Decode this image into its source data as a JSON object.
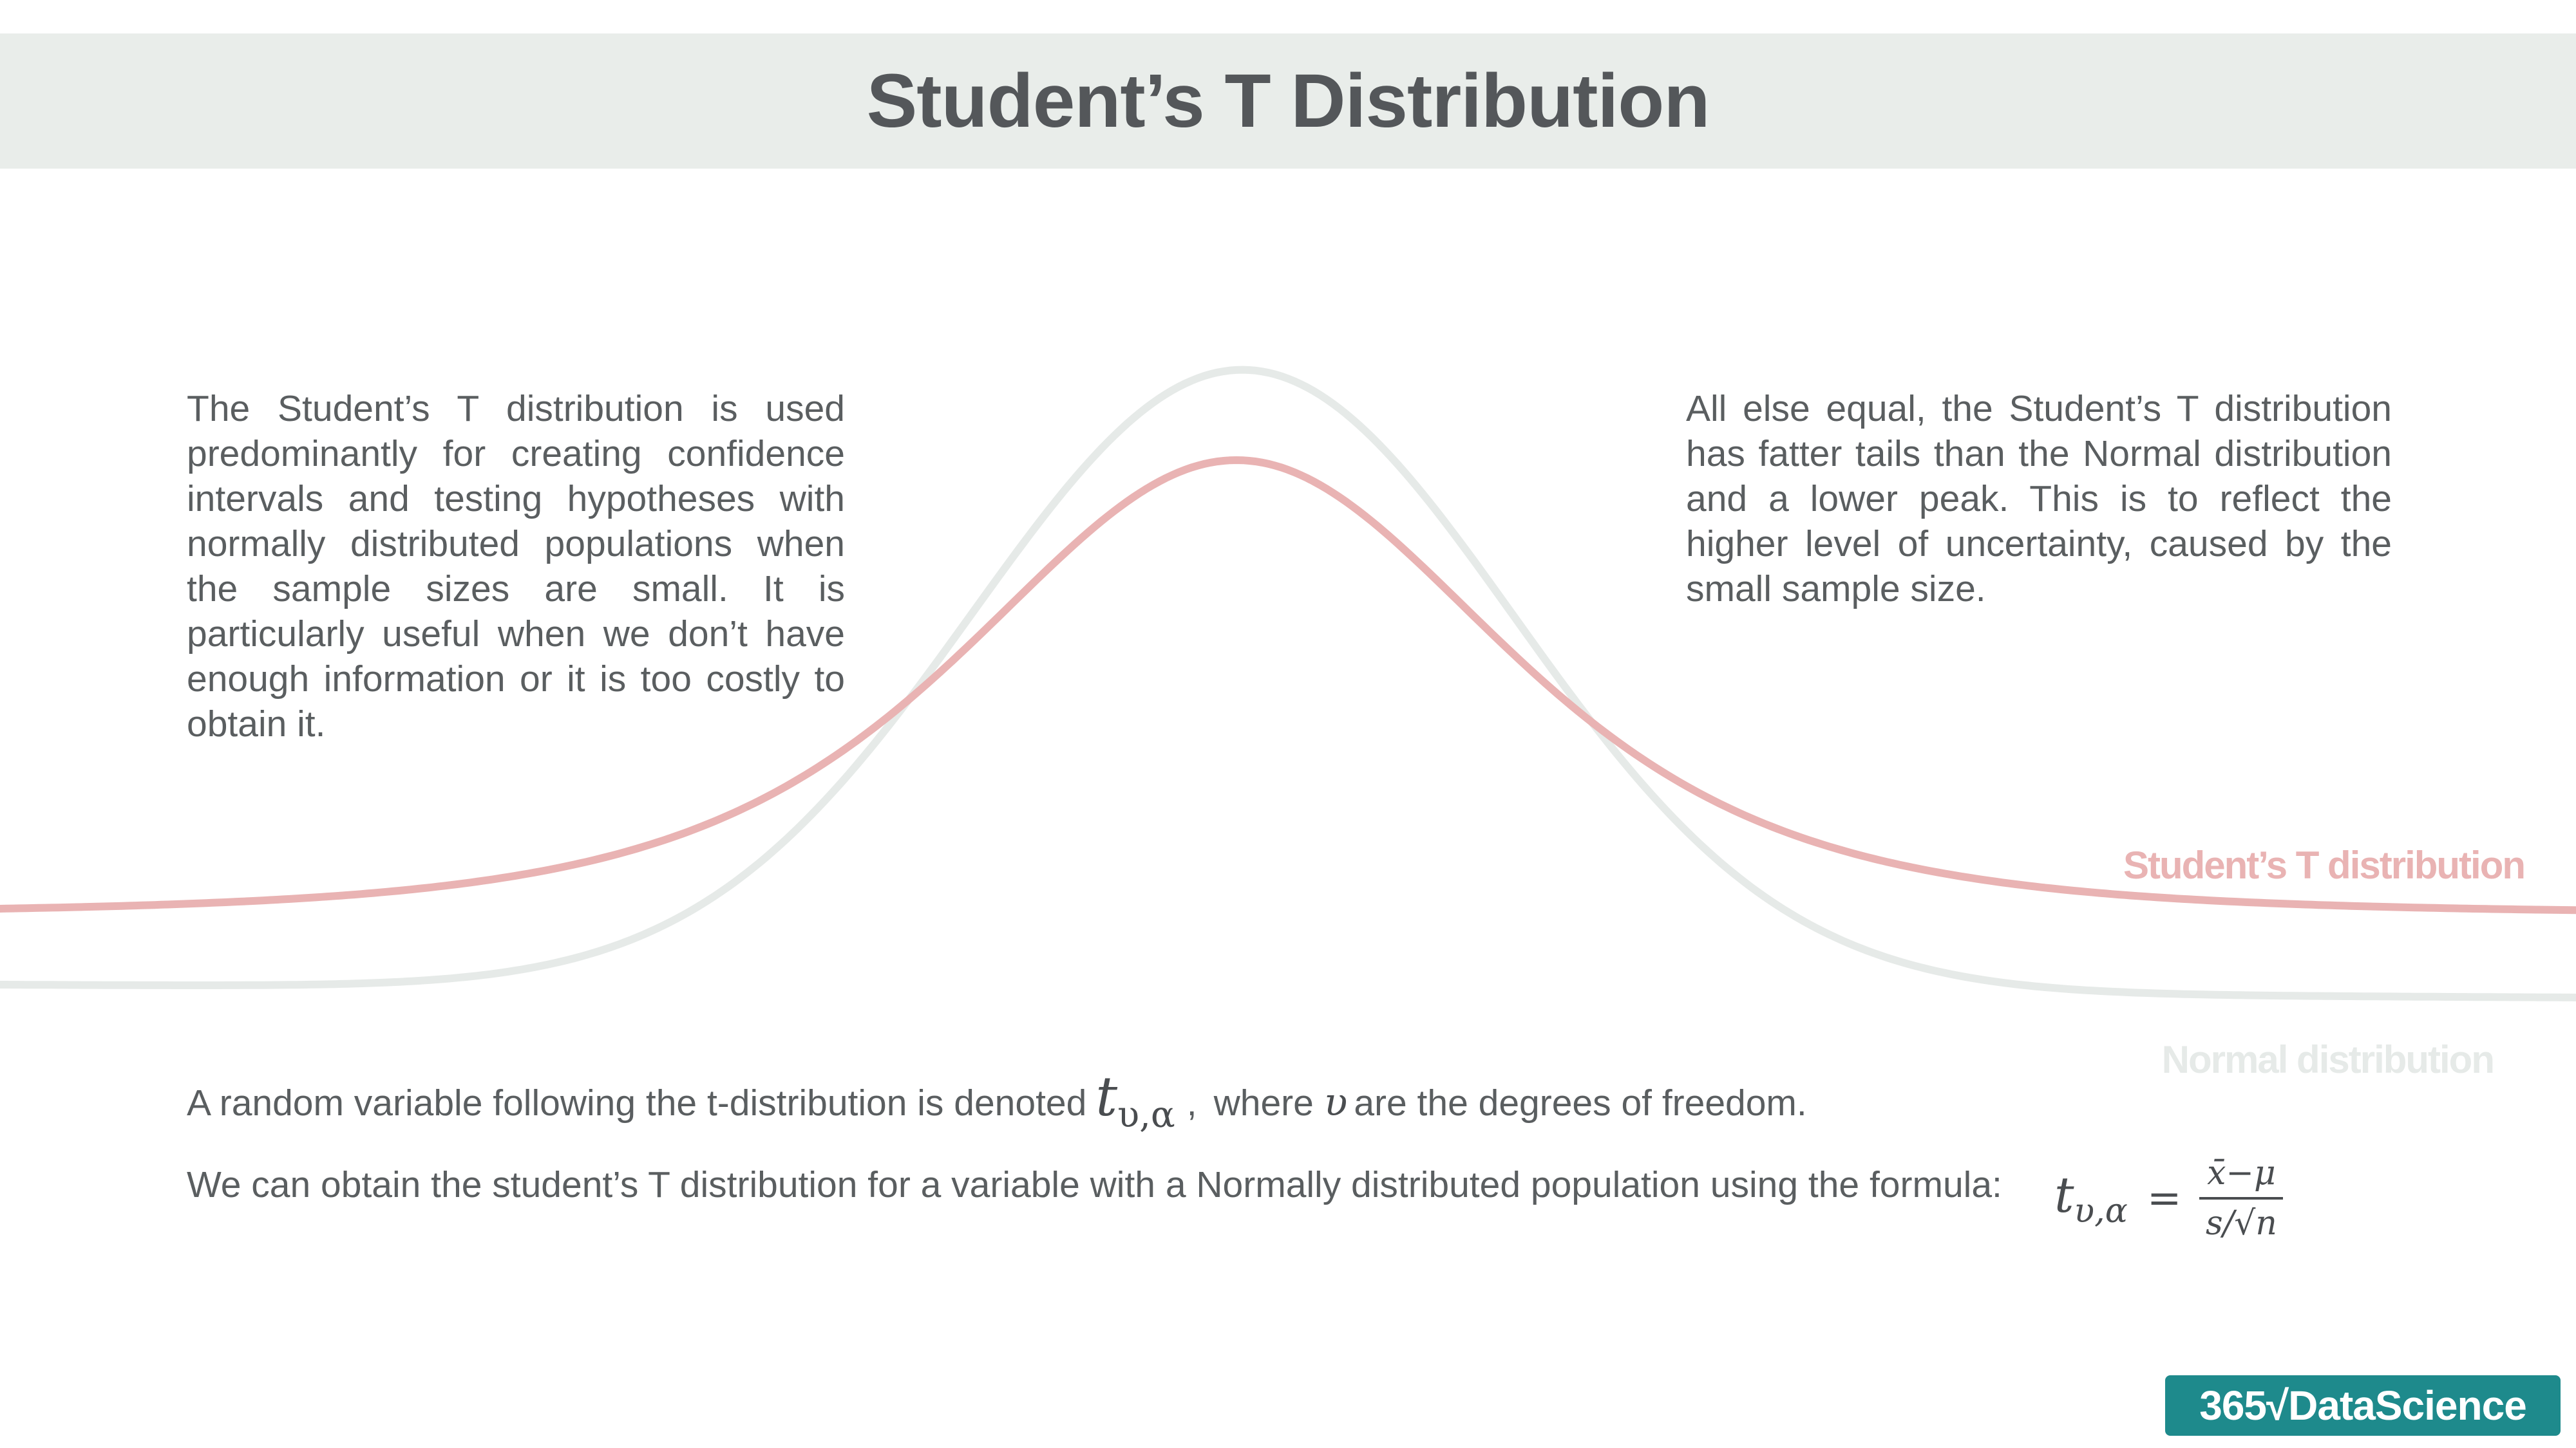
{
  "title": "Student’s T Distribution",
  "left_paragraph": "The Student’s T distribution is used predominantly for creating confidence intervals and testing hypotheses with normally distributed populations when the sample sizes are small. It is particularly useful when we don’t have enough information or it is too costly to obtain it.",
  "right_paragraph": "All else equal, the Student’s T distribution has fatter tails than the Normal distribution and a lower peak. This is to reflect the higher level of uncertainty, caused by the small sample size.",
  "curves": {
    "t_label": "Student’s T distribution",
    "normal_label": "Normal distribution",
    "t_color": "#e9b3b3",
    "normal_color": "#e6eae8"
  },
  "notation_line": {
    "before": "A random variable following the t-distribution is denoted",
    "symbol": "t",
    "subscript": "υ,α",
    "comma": ",",
    "where": "where",
    "nu": "υ",
    "after": "are the degrees of freedom."
  },
  "formula_line": {
    "text": "We can obtain the student’s T distribution for a variable with a Normally distributed population using the formula:",
    "lhs_symbol": "t",
    "lhs_subscript": "υ,α",
    "equals": "=",
    "numerator": "x̄−μ",
    "denominator": "s/√n"
  },
  "logo": {
    "text": "365√DataScience",
    "color": "#1e8a8c"
  },
  "colors": {
    "title_band": "#e9edea",
    "text": "#5a5e60"
  }
}
